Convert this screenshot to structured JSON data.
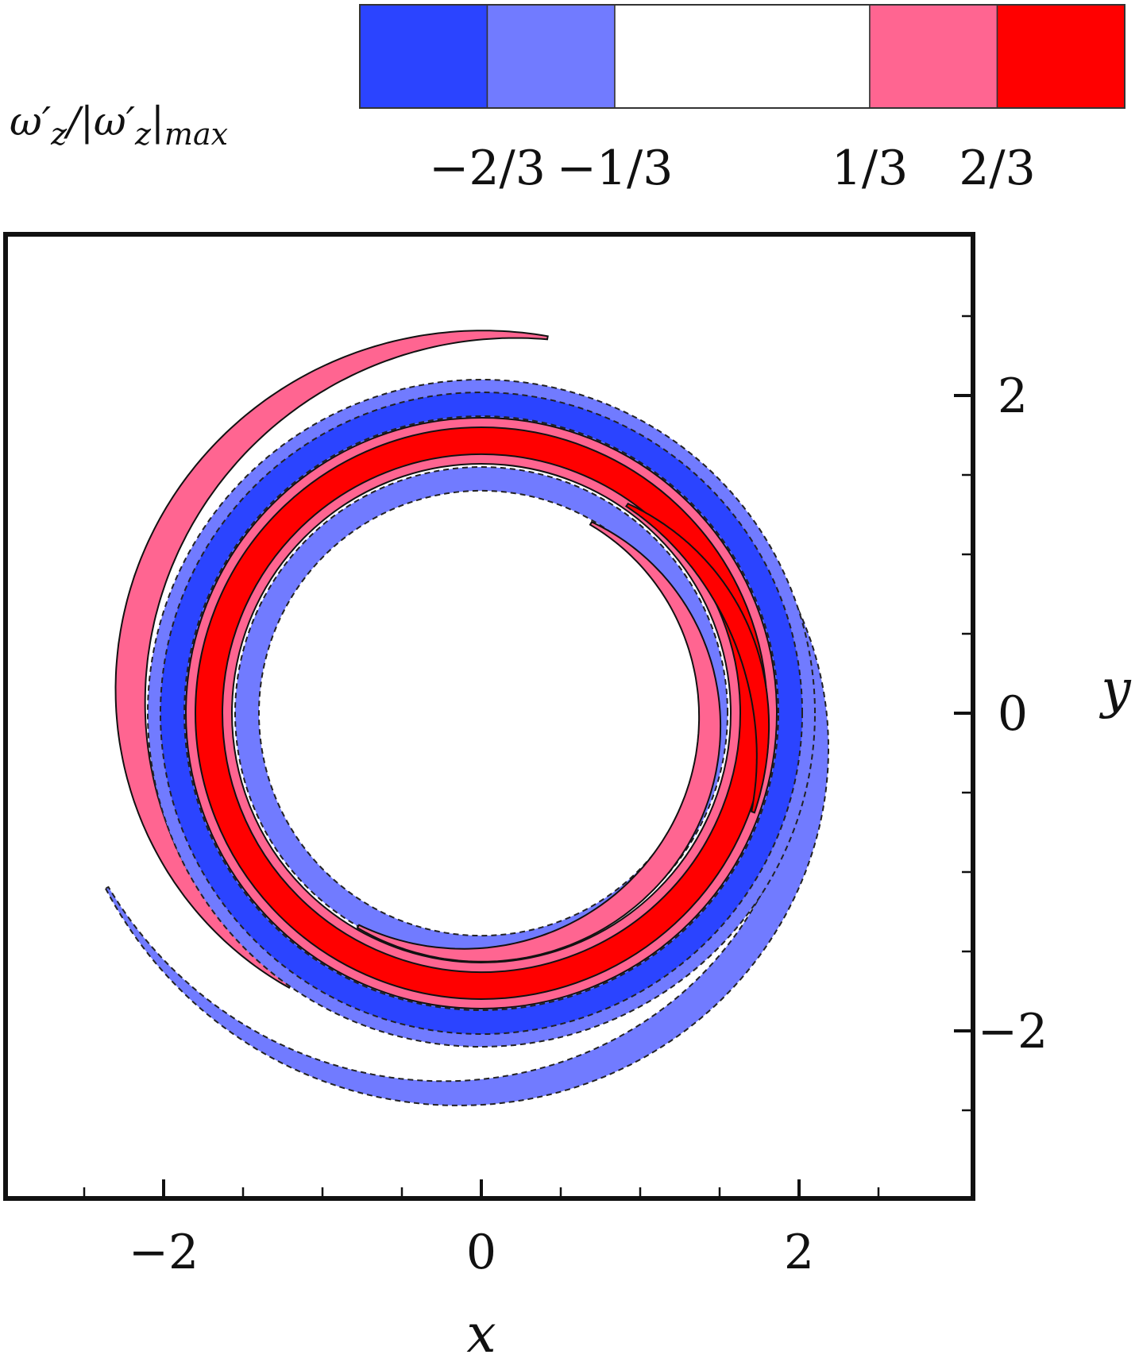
{
  "chart_data": {
    "type": "contour",
    "xlabel": "x",
    "ylabel": "y",
    "xticks": [
      "−2",
      "0",
      "2"
    ],
    "yticks": [
      "2",
      "0",
      "−2"
    ],
    "xlim": [
      -3,
      3
    ],
    "ylim": [
      -3,
      3
    ],
    "minor_tick_step": 0.5,
    "colorbar": {
      "title": "ω′z/|ω′z|max",
      "title_parts": {
        "w1": "ω",
        "p1": "′",
        "s1": "z",
        "mid": "/|",
        "w2": "ω",
        "p2": "′",
        "s2": "z",
        "bar": "|",
        "s3": "max"
      },
      "levels": [
        -1,
        -0.6667,
        -0.3333,
        0.3333,
        0.6667,
        1
      ],
      "tick_labels": [
        "−2/3",
        "−1/3",
        "1/3",
        "2/3"
      ],
      "colors": [
        "#2b44ff",
        "#717bff",
        "#ffffff",
        "#ff6591",
        "#ff0000"
      ]
    },
    "bands": [
      {
        "name": "outer pink spiral arm",
        "level": "1/3 to 2/3",
        "color": "#ff6591",
        "centre_radius_range": [
          2.1,
          2.4
        ],
        "theta_range_deg": [
          80,
          235
        ],
        "width": [
          0.02,
          0.2
        ]
      },
      {
        "name": "outer blue spiral arm",
        "level": "-2/3 to -1/3",
        "color": "#717bff",
        "centre_radius_range": [
          1.85,
          2.6
        ],
        "theta_range_deg": [
          -155,
          72
        ],
        "width": [
          0.02,
          0.2
        ]
      },
      {
        "name": "light blue ring (outer)",
        "level": "-2/3 to -1/3",
        "color": "#717bff",
        "radius_range": [
          1.82,
          2.1
        ],
        "theta_range_deg": [
          0,
          360
        ]
      },
      {
        "name": "dark blue ring",
        "level": "-1 to -2/3",
        "color": "#2b44ff",
        "radius_range": [
          1.87,
          2.02
        ],
        "theta_range_deg": [
          0,
          360
        ]
      },
      {
        "name": "pink ring",
        "level": "1/3 to 2/3",
        "color": "#ff6591",
        "radius_range": [
          1.57,
          1.86
        ],
        "theta_range_deg": [
          0,
          360
        ]
      },
      {
        "name": "red ring",
        "level": "2/3 to 1",
        "color": "#ff0000",
        "radius_range": [
          1.63,
          1.8
        ],
        "theta_range_deg": [
          0,
          360
        ]
      },
      {
        "name": "inner blue ring",
        "level": "-2/3 to -1/3",
        "color": "#717bff",
        "radius_range": [
          1.4,
          1.55
        ],
        "theta_range_deg": [
          -140,
          250
        ]
      },
      {
        "name": "inner pink spiral arm",
        "level": "1/3 to 2/3",
        "color": "#ff6591",
        "centre_radius_range": [
          1.38,
          1.55
        ],
        "theta_range_deg": [
          -120,
          60
        ],
        "width": [
          0.02,
          0.15
        ]
      },
      {
        "name": "inner red spiral arm",
        "level": "2/3 to 1",
        "color": "#ff0000",
        "centre_radius_range": [
          1.6,
          1.82
        ],
        "theta_range_deg": [
          -20,
          55
        ],
        "width": [
          0.02,
          0.12
        ]
      }
    ]
  }
}
